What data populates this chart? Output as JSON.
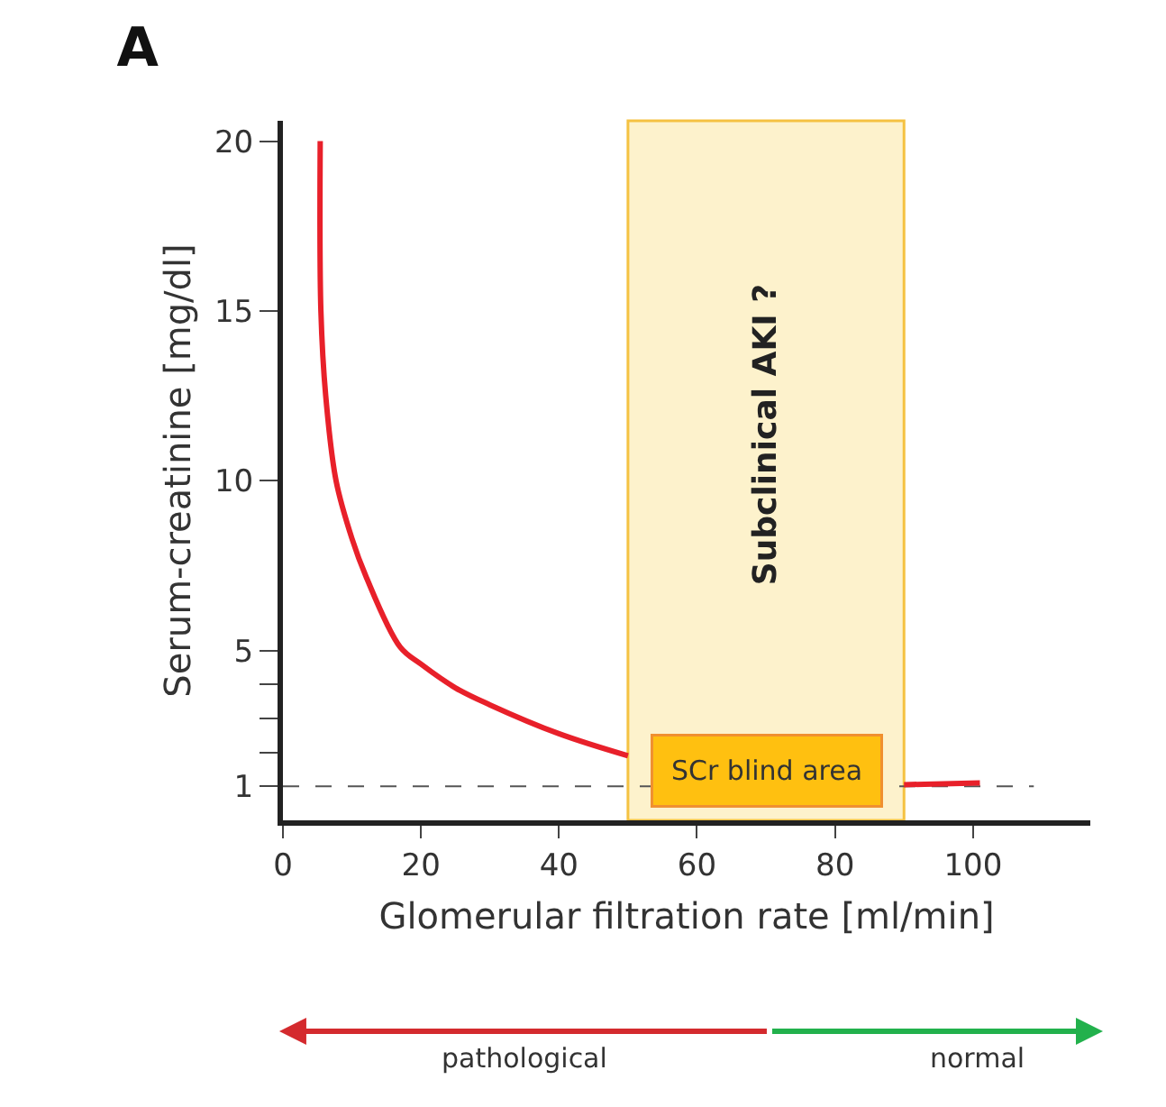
{
  "chart_data": {
    "type": "line",
    "title": "A",
    "xlabel": "Glomerular filtration rate [ml/min]",
    "ylabel": "Serum-creatinine [mg/dl]",
    "x": [
      5.4,
      5.5,
      6.2,
      7.7,
      10,
      12,
      17,
      20,
      25,
      30,
      40,
      50,
      70,
      90,
      101
    ],
    "series": [
      {
        "color": "#e8202a",
        "values": [
          20,
          15,
          12.5,
          10,
          8.3,
          7.2,
          5.1,
          4.6,
          3.9,
          3.4,
          2.55,
          1.9,
          null,
          1.05,
          1.1
        ]
      }
    ],
    "xlim": [
      0,
      117
    ],
    "xticks": [
      0,
      20,
      40,
      60,
      80,
      100
    ],
    "ylim": [
      0,
      20.6
    ],
    "yticks": [
      {
        "value": 1,
        "label": "1"
      },
      {
        "value": 2,
        "label": null
      },
      {
        "value": 3,
        "label": null
      },
      {
        "value": 4,
        "label": null
      },
      5,
      10,
      15,
      20
    ],
    "ref_lines": [
      {
        "axis": "y",
        "value": 1,
        "line_style": "dashed",
        "color": "#555555"
      }
    ],
    "bands": [
      {
        "axis": "x",
        "from": 50,
        "to": 90,
        "label": "Subclinical AKI ?",
        "color": "#fdf2cc"
      }
    ],
    "annotations": [
      "SCr blind area",
      "pathological",
      "normal"
    ],
    "marker": "none",
    "line_style": "solid"
  }
}
